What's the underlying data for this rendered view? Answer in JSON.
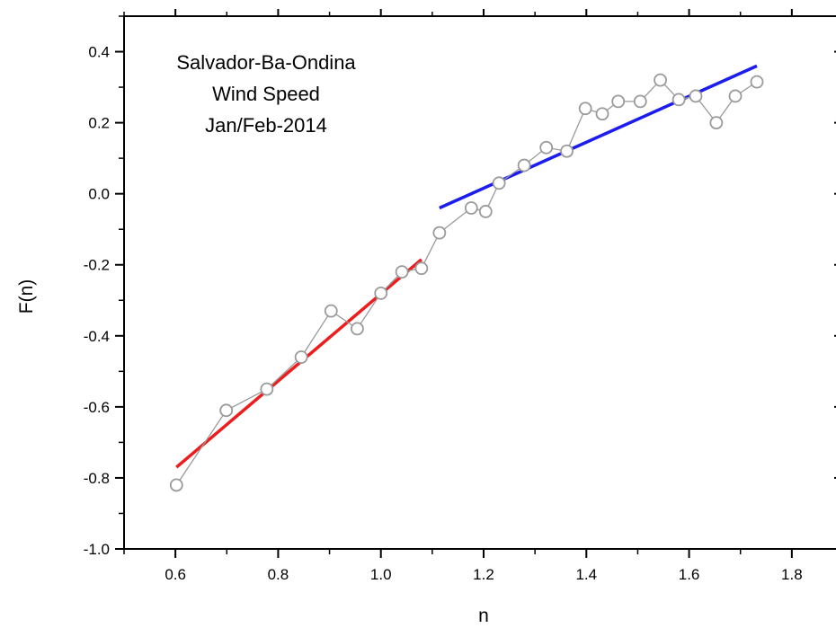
{
  "chart_data": {
    "type": "scatter",
    "xlabel": "n",
    "ylabel": "F(n)",
    "xlim": [
      0.5,
      1.9
    ],
    "ylim": [
      -1.0,
      0.5
    ],
    "x_ticks": [
      0.6,
      0.8,
      1.0,
      1.2,
      1.4,
      1.6,
      1.8
    ],
    "x_tick_labels": [
      "0.6",
      "0.8",
      "1.0",
      "1.2",
      "1.4",
      "1.6",
      "1.8"
    ],
    "y_ticks": [
      -1.0,
      -0.8,
      -0.6,
      -0.4,
      -0.2,
      0.0,
      0.2,
      0.4
    ],
    "y_tick_labels": [
      "-1.0",
      "-0.8",
      "-0.6",
      "-0.4",
      "-0.2",
      "0.0",
      "0.2",
      "0.4"
    ],
    "annotation": [
      "Salvador-Ba-Ondina",
      "Wind Speed",
      "Jan/Feb-2014"
    ],
    "grid": false,
    "series": [
      {
        "marker": "open-circle",
        "connected": true,
        "color": "#9a9a9a",
        "x": [
          0.602,
          0.699,
          0.778,
          0.845,
          0.903,
          0.954,
          1.0,
          1.041,
          1.079,
          1.114,
          1.176,
          1.204,
          1.23,
          1.279,
          1.322,
          1.362,
          1.398,
          1.431,
          1.462,
          1.505,
          1.544,
          1.58,
          1.613,
          1.653,
          1.69,
          1.732
        ],
        "y": [
          -0.82,
          -0.61,
          -0.55,
          -0.46,
          -0.33,
          -0.38,
          -0.28,
          -0.22,
          -0.21,
          -0.11,
          -0.04,
          -0.05,
          0.03,
          0.08,
          0.13,
          0.12,
          0.24,
          0.225,
          0.26,
          0.26,
          0.32,
          0.265,
          0.275,
          0.2,
          0.275,
          0.315
        ]
      }
    ],
    "fits": [
      {
        "color": "#ee1c1c",
        "x": [
          0.602,
          1.079
        ],
        "y": [
          -0.77,
          -0.185
        ]
      },
      {
        "color": "#1c1cee",
        "x": [
          1.114,
          1.732
        ],
        "y": [
          -0.04,
          0.36
        ]
      }
    ]
  }
}
